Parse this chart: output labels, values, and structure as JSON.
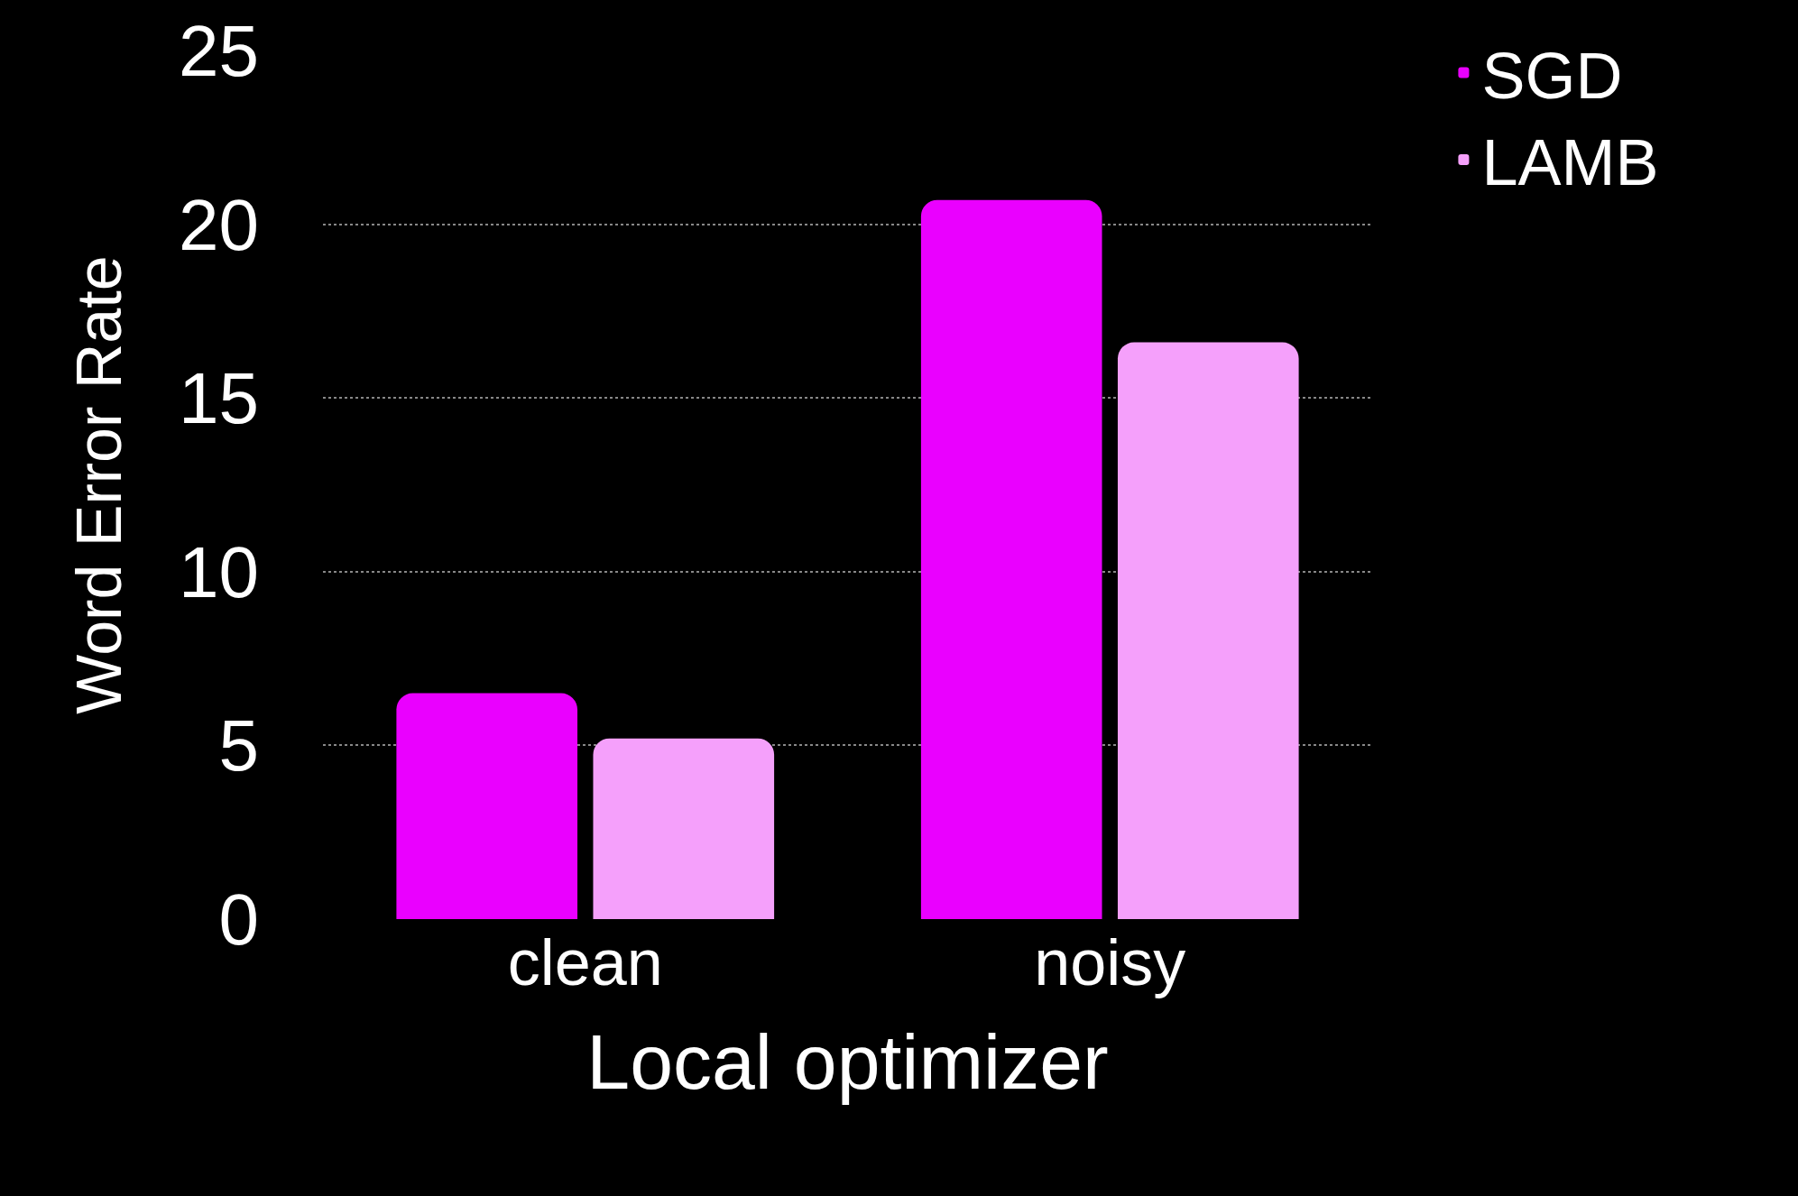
{
  "chart_data": {
    "type": "bar",
    "xlabel": "Local optimizer",
    "ylabel": "Word Error Rate",
    "categories": [
      "clean",
      "noisy"
    ],
    "series": [
      {
        "name": "SGD",
        "color": "#ea00ff",
        "values": [
          6.5,
          20.7
        ]
      },
      {
        "name": "LAMB",
        "color": "#f5a0fb",
        "values": [
          5.2,
          16.6
        ]
      }
    ],
    "ylim": [
      0,
      25
    ],
    "yticks": [
      0,
      5,
      10,
      15,
      20,
      25
    ],
    "grid": "y",
    "legend": "top right"
  }
}
